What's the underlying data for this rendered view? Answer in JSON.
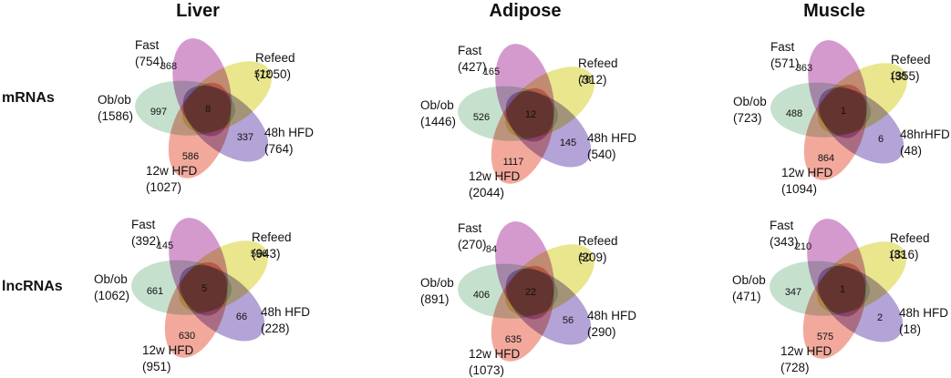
{
  "figure": {
    "column_titles": [
      "Liver",
      "Adipose",
      "Muscle"
    ],
    "row_labels": [
      "mRNAs",
      "lncRNAs"
    ]
  },
  "colors": {
    "fast": "#d49ace",
    "refeed": "#e9e68e",
    "obob": "#c6e0ce",
    "hfd48": "#b3a3d6",
    "hfd12w": "#f2a99c"
  },
  "chart_data": {
    "type": "venn-diagram-grid",
    "panels": [
      {
        "tissue": "Liver",
        "molecule": "mRNAs",
        "intersection_all": "8",
        "sets": [
          {
            "key": "fast",
            "name": "Fast",
            "total": "(754)",
            "value": "368"
          },
          {
            "key": "refeed",
            "name": "Refeed",
            "total": "(1050)",
            "value": "572"
          },
          {
            "key": "obob",
            "name": "Ob/ob",
            "total": "(1586)",
            "value": "997"
          },
          {
            "key": "hfd48",
            "name": "48h HFD",
            "total": "(764)",
            "value": "337"
          },
          {
            "key": "hfd12w",
            "name": "12w HFD",
            "total": "(1027)",
            "value": "586"
          }
        ]
      },
      {
        "tissue": "Adipose",
        "molecule": "mRNAs",
        "intersection_all": "12",
        "sets": [
          {
            "key": "fast",
            "name": "Fast",
            "total": "(427)",
            "value": "165"
          },
          {
            "key": "refeed",
            "name": "Refeed",
            "total": "(312)",
            "value": "78"
          },
          {
            "key": "obob",
            "name": "Ob/ob",
            "total": "(1446)",
            "value": "526"
          },
          {
            "key": "hfd48",
            "name": "48h HFD",
            "total": "(540)",
            "value": "145"
          },
          {
            "key": "hfd12w",
            "name": "12w HFD",
            "total": "(2044)",
            "value": "1117"
          }
        ]
      },
      {
        "tissue": "Muscle",
        "molecule": "mRNAs",
        "intersection_all": "1",
        "sets": [
          {
            "key": "fast",
            "name": "Fast",
            "total": "(571)",
            "value": "363"
          },
          {
            "key": "refeed",
            "name": "Refeed",
            "total": "(355)",
            "value": "198"
          },
          {
            "key": "obob",
            "name": "Ob/ob",
            "total": "(723)",
            "value": "488"
          },
          {
            "key": "hfd48",
            "name": "48hrHFD",
            "total": "(48)",
            "value": "6"
          },
          {
            "key": "hfd12w",
            "name": "12w HFD",
            "total": "(1094)",
            "value": "864"
          }
        ]
      },
      {
        "tissue": "Liver",
        "molecule": "lncRNAs",
        "intersection_all": "5",
        "sets": [
          {
            "key": "fast",
            "name": "Fast",
            "total": "(392)",
            "value": "145"
          },
          {
            "key": "refeed",
            "name": "Refeed",
            "total": "(943)",
            "value": "566"
          },
          {
            "key": "obob",
            "name": "Ob/ob",
            "total": "(1062)",
            "value": "661"
          },
          {
            "key": "hfd48",
            "name": "48h HFD",
            "total": "(228)",
            "value": "66"
          },
          {
            "key": "hfd12w",
            "name": "12w HFD",
            "total": "(951)",
            "value": "630"
          }
        ]
      },
      {
        "tissue": "Adipose",
        "molecule": "lncRNAs",
        "intersection_all": "22",
        "sets": [
          {
            "key": "fast",
            "name": "Fast",
            "total": "(270)",
            "value": "84"
          },
          {
            "key": "refeed",
            "name": "Refeed",
            "total": "(209)",
            "value": "50"
          },
          {
            "key": "obob",
            "name": "Ob/ob",
            "total": "(891)",
            "value": "406"
          },
          {
            "key": "hfd48",
            "name": "48h HFD",
            "total": "(290)",
            "value": "56"
          },
          {
            "key": "hfd12w",
            "name": "12w HFD",
            "total": "(1073)",
            "value": "635"
          }
        ]
      },
      {
        "tissue": "Muscle",
        "molecule": "lncRNAs",
        "intersection_all": "1",
        "sets": [
          {
            "key": "fast",
            "name": "Fast",
            "total": "(343)",
            "value": "210"
          },
          {
            "key": "refeed",
            "name": "Refeed",
            "total": "(316)",
            "value": "183"
          },
          {
            "key": "obob",
            "name": "Ob/ob",
            "total": "(471)",
            "value": "347"
          },
          {
            "key": "hfd48",
            "name": "48h HFD",
            "total": "(18)",
            "value": "2"
          },
          {
            "key": "hfd12w",
            "name": "12w HFD",
            "total": "(728)",
            "value": "575"
          }
        ]
      }
    ]
  }
}
